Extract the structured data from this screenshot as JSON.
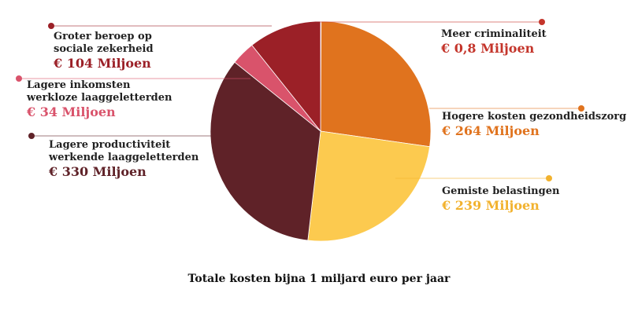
{
  "chart_data": {
    "type": "pie",
    "unit": "Miljoen",
    "slices": [
      {
        "name": "Meer criminaliteit",
        "value": 0.8,
        "value_label": "€ 0,8 Miljoen",
        "color": "#c4352b"
      },
      {
        "name": "Hogere kosten gezondheidszorg",
        "value": 264,
        "value_label": "€ 264 Miljoen",
        "color": "#e0731e"
      },
      {
        "name": "Gemiste belastingen",
        "value": 239,
        "value_label": "€ 239 Miljoen",
        "color": "#fcca4f"
      },
      {
        "name": "Lagere productiviteit werkende laaggeletterden",
        "value": 330,
        "value_label": "€ 330 Miljoen",
        "color": "#5f2228"
      },
      {
        "name": "Lagere inkomsten werkloze laaggeletterden",
        "value": 34,
        "value_label": "€ 34 Miljoen",
        "color": "#d9536b"
      },
      {
        "name": "Groter beroep op sociale zekerheid",
        "value": 104,
        "value_label": "€ 104 Miljoen",
        "color": "#9b2027"
      }
    ],
    "caption": "Totale kosten bijna 1 miljard euro per jaar"
  }
}
